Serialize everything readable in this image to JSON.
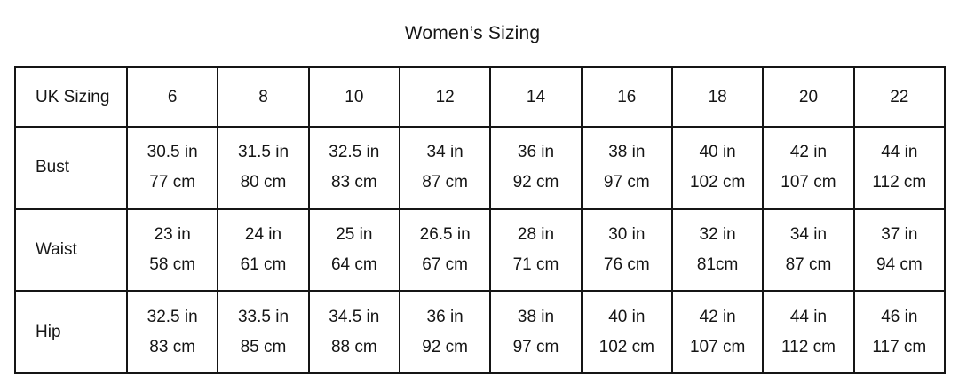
{
  "title": "Women’s Sizing",
  "colors": {
    "border": "#151515",
    "text": "#151515",
    "background": "#ffffff"
  },
  "chart_data": {
    "type": "table",
    "title": "Women’s Sizing",
    "header": {
      "label": "UK Sizing",
      "sizes": [
        "6",
        "8",
        "10",
        "12",
        "14",
        "16",
        "18",
        "20",
        "22"
      ]
    },
    "rows": [
      {
        "label": "Bust",
        "in": [
          "30.5 in",
          "31.5 in",
          "32.5 in",
          "34 in",
          "36 in",
          "38 in",
          "40 in",
          "42 in",
          "44 in"
        ],
        "cm": [
          "77 cm",
          "80 cm",
          "83 cm",
          "87 cm",
          "92 cm",
          "97 cm",
          "102 cm",
          "107 cm",
          "112 cm"
        ]
      },
      {
        "label": "Waist",
        "in": [
          "23 in",
          "24 in",
          "25 in",
          "26.5 in",
          "28 in",
          "30 in",
          "32 in",
          "34 in",
          "37 in"
        ],
        "cm": [
          "58 cm",
          "61 cm",
          "64 cm",
          "67 cm",
          "71 cm",
          "76 cm",
          "81cm",
          "87 cm",
          "94 cm"
        ]
      },
      {
        "label": "Hip",
        "in": [
          "32.5 in",
          "33.5 in",
          "34.5 in",
          "36 in",
          "38 in",
          "40 in",
          "42 in",
          "44 in",
          "46 in"
        ],
        "cm": [
          "83 cm",
          "85 cm",
          "88 cm",
          "92 cm",
          "97 cm",
          "102 cm",
          "107 cm",
          "112 cm",
          "117 cm"
        ]
      }
    ]
  }
}
